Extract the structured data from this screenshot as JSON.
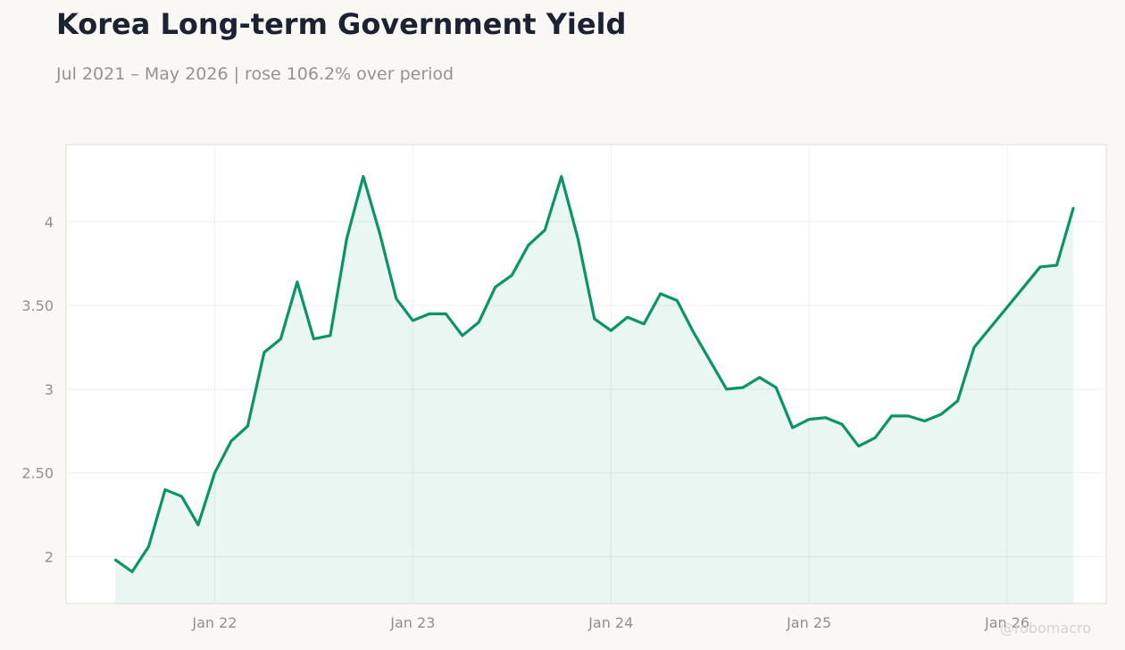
{
  "title": "Korea Long-term Government Yield",
  "subtitle": "Jul 2021 – May 2026 | rose 106.2% over period",
  "watermark": "@robomacro",
  "colors": {
    "line": "#0b9468",
    "fill": "#0b9468",
    "background": "#f9f8f5",
    "plot_background": "#ffffff"
  },
  "chart_data": {
    "type": "area",
    "title": "Korea Long-term Government Yield",
    "subtitle": "Jul 2021 – May 2026 | rose 106.2% over period",
    "xlabel": "",
    "ylabel": "",
    "x_ticks": [
      "Jan 22",
      "Jan 23",
      "Jan 24",
      "Jan 25",
      "Jan 26"
    ],
    "x_tick_dates": [
      "2022-01",
      "2023-01",
      "2024-01",
      "2025-01",
      "2026-01"
    ],
    "y_ticks": [
      2,
      2.5,
      3,
      3.5,
      4
    ],
    "y_tick_labels": [
      "2",
      "2.50",
      "3",
      "3.50",
      "4"
    ],
    "ylim": [
      1.72,
      4.46
    ],
    "xlim": [
      "2021-04",
      "2026-07"
    ],
    "grid": true,
    "legend": "none",
    "x": [
      "2021-07",
      "2021-08",
      "2021-09",
      "2021-10",
      "2021-11",
      "2021-12",
      "2022-01",
      "2022-02",
      "2022-03",
      "2022-04",
      "2022-05",
      "2022-06",
      "2022-07",
      "2022-08",
      "2022-09",
      "2022-10",
      "2022-11",
      "2022-12",
      "2023-01",
      "2023-02",
      "2023-03",
      "2023-04",
      "2023-05",
      "2023-06",
      "2023-07",
      "2023-08",
      "2023-09",
      "2023-10",
      "2023-11",
      "2023-12",
      "2024-01",
      "2024-02",
      "2024-03",
      "2024-04",
      "2024-05",
      "2024-06",
      "2024-07",
      "2024-08",
      "2024-09",
      "2024-10",
      "2024-11",
      "2024-12",
      "2025-01",
      "2025-02",
      "2025-03",
      "2025-04",
      "2025-05",
      "2025-06",
      "2025-07",
      "2025-08",
      "2025-09",
      "2025-10",
      "2025-11",
      "2025-12",
      "2026-01",
      "2026-02",
      "2026-03",
      "2026-04",
      "2026-05"
    ],
    "values": [
      1.98,
      1.91,
      2.06,
      2.4,
      2.36,
      2.19,
      2.5,
      2.69,
      2.78,
      3.22,
      3.3,
      3.64,
      3.3,
      3.32,
      3.9,
      4.27,
      3.93,
      3.54,
      3.41,
      3.45,
      3.45,
      3.32,
      3.4,
      3.61,
      3.68,
      3.86,
      3.95,
      4.27,
      3.9,
      3.42,
      3.35,
      3.43,
      3.39,
      3.57,
      3.53,
      3.34,
      3.17,
      3.0,
      3.01,
      3.07,
      3.01,
      2.77,
      2.82,
      2.83,
      2.79,
      2.66,
      2.71,
      2.84,
      2.84,
      2.81,
      2.85,
      2.93,
      3.25,
      3.37,
      3.49,
      3.61,
      3.73,
      3.74,
      4.08
    ]
  }
}
